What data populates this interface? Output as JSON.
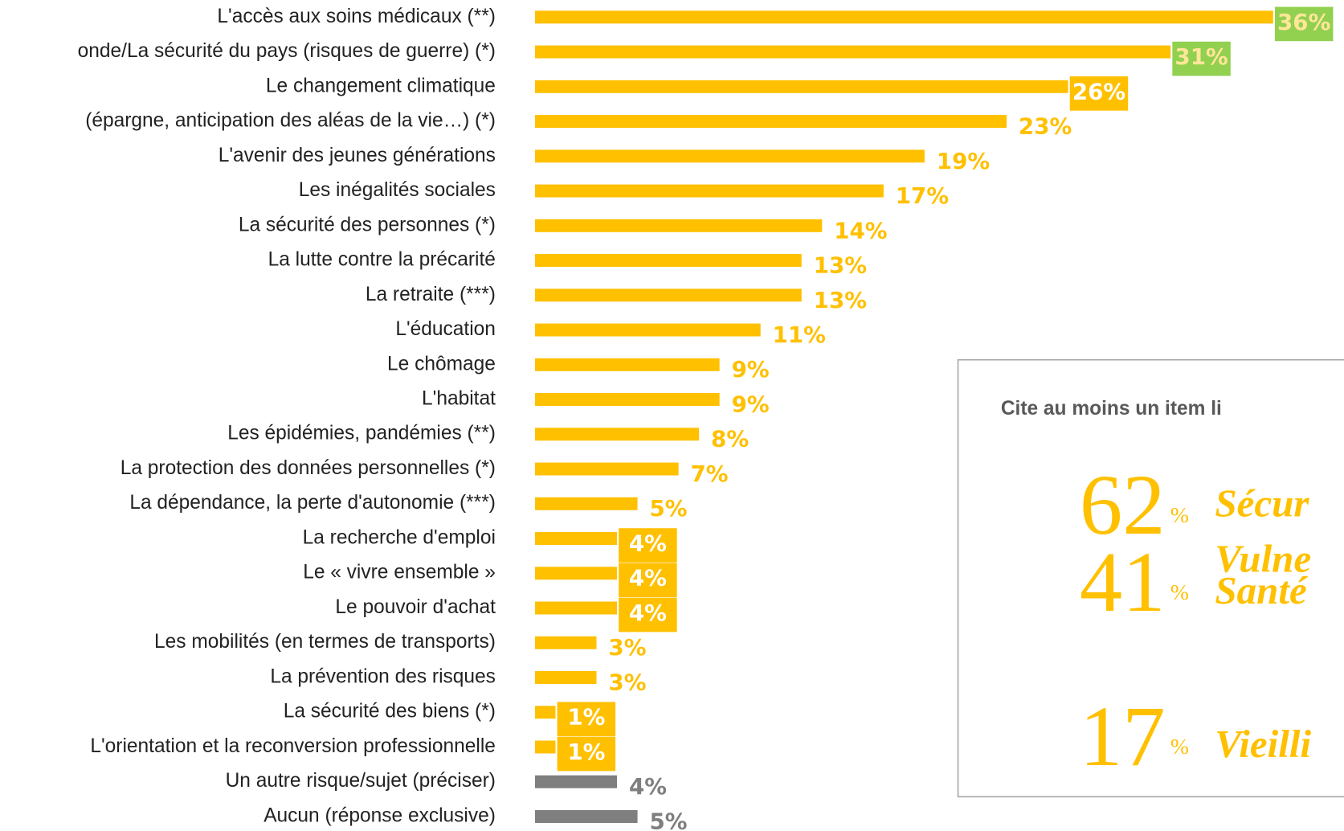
{
  "chart_data": {
    "type": "bar",
    "orientation": "horizontal",
    "categories": [
      "L'accès aux soins médicaux (**)",
      "onde/La sécurité du pays (risques de guerre) (*)",
      "Le changement climatique",
      "(épargne, anticipation des aléas de la vie…) (*)",
      "L'avenir des jeunes générations",
      "Les inégalités sociales",
      "La sécurité des personnes (*)",
      "La lutte contre la précarité",
      "La retraite (***)",
      "L'éducation",
      "Le chômage",
      "L'habitat",
      "Les épidémies, pandémies (**)",
      "La protection des données personnelles (*)",
      "La dépendance, la perte d'autonomie (***)",
      "La recherche d'emploi",
      "Le « vivre ensemble »",
      "Le pouvoir d'achat",
      "Les mobilités (en termes de transports)",
      "La prévention des risques",
      "La sécurité des biens (*)",
      "L'orientation et la reconversion professionnelle",
      "Un autre risque/sujet (préciser)",
      "Aucun (réponse exclusive)"
    ],
    "values": [
      36,
      31,
      26,
      23,
      19,
      17,
      14,
      13,
      13,
      11,
      9,
      9,
      8,
      7,
      5,
      4,
      4,
      4,
      3,
      3,
      1,
      1,
      4,
      5
    ],
    "value_labels": [
      "36%",
      "31%",
      "26%",
      "23%",
      "19%",
      "17%",
      "14%",
      "13%",
      "13%",
      "11%",
      "9%",
      "9%",
      "8%",
      "7%",
      "5%",
      "4%",
      "4%",
      "4%",
      "3%",
      "3%",
      "1%",
      "1%",
      "4%",
      "5%"
    ],
    "colors": [
      "#ffc000",
      "#ffc000",
      "#ffc000",
      "#ffc000",
      "#ffc000",
      "#ffc000",
      "#ffc000",
      "#ffc000",
      "#ffc000",
      "#ffc000",
      "#ffc000",
      "#ffc000",
      "#ffc000",
      "#ffc000",
      "#ffc000",
      "#ffc000",
      "#ffc000",
      "#ffc000",
      "#ffc000",
      "#ffc000",
      "#ffc000",
      "#ffc000",
      "#7f7f7f",
      "#7f7f7f"
    ],
    "label_box_colors": [
      "#92d050",
      "#92d050",
      "#ffc000",
      null,
      null,
      null,
      null,
      null,
      null,
      null,
      null,
      null,
      null,
      null,
      null,
      "#ffc000",
      "#ffc000",
      "#ffc000",
      null,
      null,
      "#ffc000",
      "#ffc000",
      null,
      null
    ],
    "xlim": [
      0,
      36
    ]
  },
  "box": {
    "title": "Cite au moins un item li",
    "unit": "%",
    "items": [
      {
        "value": "62",
        "lines": [
          "Sécur",
          "Vulne"
        ]
      },
      {
        "value": "41",
        "lines": [
          "Santé"
        ]
      },
      {
        "value": "17",
        "lines": [
          "Vieilli"
        ]
      }
    ]
  }
}
